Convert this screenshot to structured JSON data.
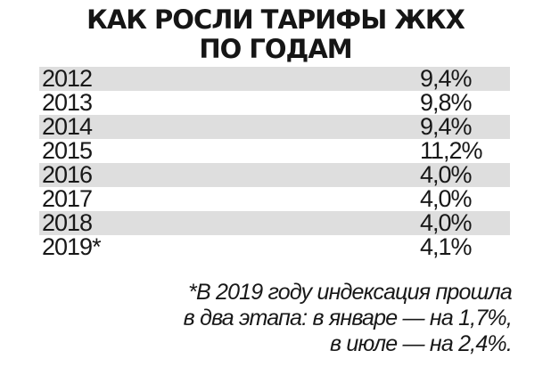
{
  "title": {
    "line1": "КАК РОСЛИ ТАРИФЫ ЖКХ",
    "line2": "ПО ГОДАМ"
  },
  "footnote": {
    "line1": "*В 2019 году индексация прошла",
    "line2": "в два этапа: в январе — на 1,7%,",
    "line3": "в июле — на 2,4%."
  },
  "chart_data": {
    "type": "table",
    "title": "КАК РОСЛИ ТАРИФЫ ЖКХ ПО ГОДАМ",
    "rows": [
      {
        "year": "2012",
        "value_label": "9,4%",
        "value": 9.4
      },
      {
        "year": "2013",
        "value_label": "9,8%",
        "value": 9.8
      },
      {
        "year": "2014",
        "value_label": "9,4%",
        "value": 9.4
      },
      {
        "year": "2015",
        "value_label": "11,2%",
        "value": 11.2
      },
      {
        "year": "2016",
        "value_label": "4,0%",
        "value": 4.0
      },
      {
        "year": "2017",
        "value_label": "4,0%",
        "value": 4.0
      },
      {
        "year": "2018",
        "value_label": "4,0%",
        "value": 4.0
      },
      {
        "year": "2019*",
        "value_label": "4,1%",
        "value": 4.1
      }
    ],
    "row_shading": [
      "#dedede",
      "#ffffff"
    ]
  }
}
